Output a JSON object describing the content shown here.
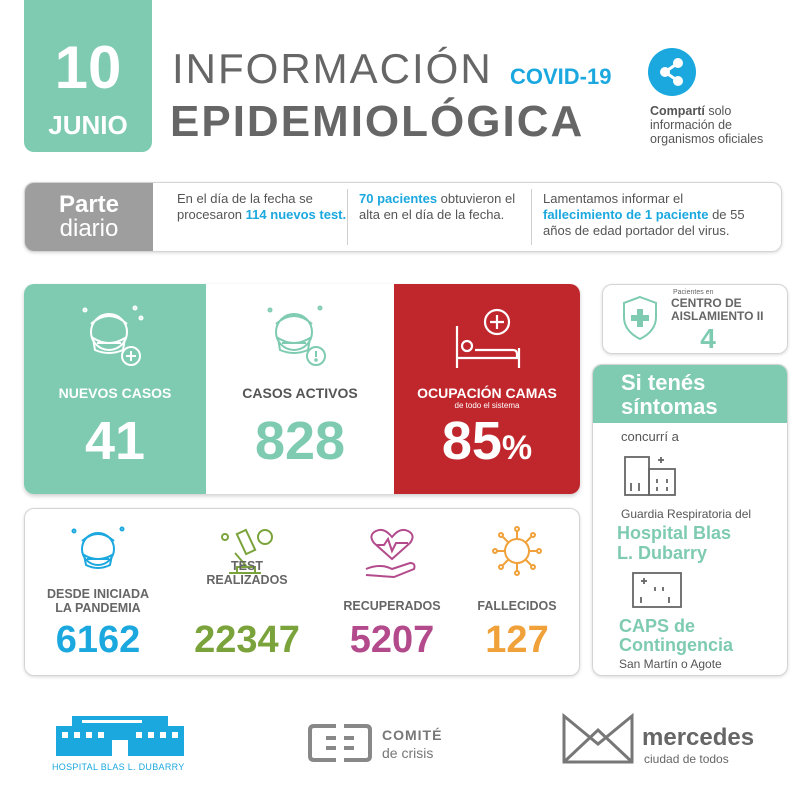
{
  "header": {
    "day": "10",
    "month": "JUNIO",
    "title_line1": "INFORMACIÓN",
    "title_tag": "COVID-19",
    "title_line2": "EPIDEMIOLÓGICA",
    "share_bold": "Compartí",
    "share_rest": "solo",
    "share_line2": "información de",
    "share_line3": "organismos oficiales"
  },
  "parte": {
    "label1": "Parte",
    "label2": "diario",
    "col1_pre": "En el día de la fecha se procesaron",
    "col1_hl": "114 nuevos test.",
    "col2_hl": "70 pacientes",
    "col2_post": "obtuvieron el alta en el día de la fecha.",
    "col3_pre": "Lamentamos informar el",
    "col3_hl": "fallecimiento de 1 paciente",
    "col3_post": "de 55 años de edad portador del virus."
  },
  "stats_top": {
    "nuevos_label": "NUEVOS  CASOS",
    "nuevos_value": "41",
    "activos_label": "CASOS ACTIVOS",
    "activos_value": "828",
    "ocup_label": "OCUPACIÓN CAMAS",
    "ocup_sub": "de todo el sistema",
    "ocup_value": "85",
    "ocup_unit": "%"
  },
  "stats_bottom": {
    "pandemia_l1": "DESDE INICIADA",
    "pandemia_l2": "LA PANDEMIA",
    "pandemia_value": "6162",
    "test_l1": "TEST",
    "test_l2": "REALIZADOS",
    "test_value": "22347",
    "recup_label": "RECUPERADOS",
    "recup_value": "5207",
    "fallec_label": "FALLECIDOS",
    "fallec_value": "127"
  },
  "centro": {
    "small": "Pacientes en",
    "title1": "CENTRO DE",
    "title2": "AISLAMIENTO II",
    "value": "4"
  },
  "sintomas": {
    "head1": "Si tenés",
    "head2": "síntomas",
    "concurri": "concurrí a",
    "guardia": "Guardia Respiratoria del",
    "hospital1": "Hospital Blas",
    "hospital2": "L. Dubarry",
    "caps1": "CAPS de",
    "caps2": "Contingencia",
    "direccion": "San Martín o Agote"
  },
  "footer": {
    "hospital_name": "HOSPITAL BLAS L. DUBARRY",
    "comite1": "COMITÉ",
    "comite2": "de crisis",
    "merc1": "mercedes",
    "merc2": "ciudad de todos"
  },
  "colors": {
    "green": "#7ecbb2",
    "blue": "#1ba8df",
    "red": "#c0272d",
    "olive": "#7ba33b",
    "magenta": "#b34a8b",
    "orange": "#f0a13a",
    "gray": "#9e9e9e"
  },
  "icons": [
    "share-icon",
    "masked-face-plus-icon",
    "masked-face-alert-icon",
    "hospital-bed-icon",
    "masked-face-icon",
    "microscope-icon",
    "heart-hand-icon",
    "virus-icon",
    "shield-cross-icon",
    "hospital-building-icon",
    "clinic-building-icon"
  ]
}
